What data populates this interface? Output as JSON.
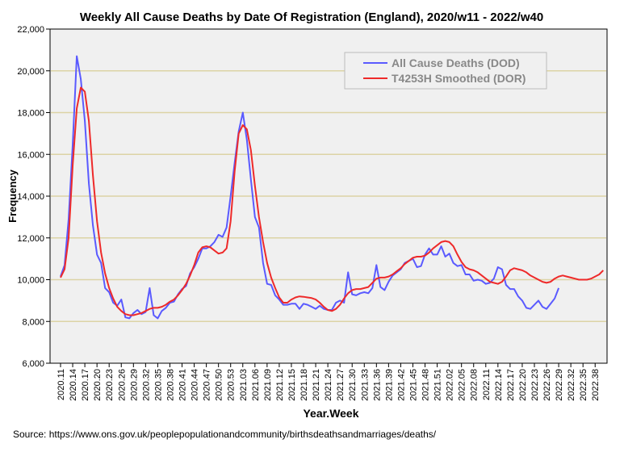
{
  "chart_data": {
    "type": "line",
    "title": "Weekly All Cause Deaths by Date Of Registration (England), 2020/w11 - 2022/w40",
    "xlabel": "Year.Week",
    "ylabel": "Frequency",
    "ylim": [
      6000,
      22000
    ],
    "yticks": [
      "6,000",
      "8,000",
      "10,000",
      "12,000",
      "14,000",
      "16,000",
      "18,000",
      "20,000",
      "22,000"
    ],
    "ytick_values": [
      6000,
      8000,
      10000,
      12000,
      14000,
      16000,
      18000,
      20000,
      22000
    ],
    "xtick_labels": [
      "2020.11",
      "2020.14",
      "2020.17",
      "2020.20",
      "2020.23",
      "2020.26",
      "2020.29",
      "2020.32",
      "2020.35",
      "2020.38",
      "2020.41",
      "2020.44",
      "2020.47",
      "2020.50",
      "2020.53",
      "2021.03",
      "2021.06",
      "2021.09",
      "2021.12",
      "2021.15",
      "2021.18",
      "2021.21",
      "2021.24",
      "2021.27",
      "2021.30",
      "2021.33",
      "2021.36",
      "2021.39",
      "2021.42",
      "2021.45",
      "2021.48",
      "2021.51",
      "2022.02",
      "2022.05",
      "2022.08",
      "2022.11",
      "2022.14",
      "2022.17",
      "2022.20",
      "2022.23",
      "2022.26",
      "2022.29",
      "2022.32",
      "2022.35",
      "2022.38"
    ],
    "xtick_every_weeks": 3,
    "grid": true,
    "legend_position": "top-right",
    "series": [
      {
        "name": "All Cause Deaths (DOD)",
        "color": "#5a5aff",
        "values": [
          10150,
          10700,
          12900,
          16500,
          20700,
          19600,
          17600,
          14600,
          12600,
          11200,
          10800,
          9600,
          9400,
          8900,
          8750,
          9050,
          8200,
          8150,
          8400,
          8550,
          8350,
          8450,
          9600,
          8300,
          8150,
          8500,
          8650,
          8900,
          8950,
          9300,
          9550,
          9700,
          10300,
          10600,
          11000,
          11500,
          11500,
          11600,
          11800,
          12150,
          12050,
          12500,
          14000,
          15600,
          17100,
          18000,
          16700,
          14800,
          13000,
          12500,
          10800,
          9800,
          9750,
          9250,
          9050,
          8800,
          8800,
          8850,
          8850,
          8600,
          8850,
          8800,
          8700,
          8600,
          8750,
          8600,
          8550,
          8550,
          8900,
          9000,
          8900,
          10350,
          9300,
          9250,
          9350,
          9400,
          9350,
          9600,
          10700,
          9650,
          9500,
          9900,
          10200,
          10350,
          10500,
          10800,
          10900,
          11000,
          10600,
          10650,
          11200,
          11500,
          11200,
          11200,
          11600,
          11100,
          11250,
          10800,
          10650,
          10700,
          10250,
          10250,
          9950,
          10000,
          9950,
          9800,
          9850,
          10050,
          10600,
          10500,
          9750,
          9550,
          9550,
          9200,
          9000,
          8650,
          8600,
          8800,
          9000,
          8700,
          8600,
          8850,
          9100,
          9600
        ]
      },
      {
        "name": "T4253H Smoothed (DOR)",
        "color": "#ee2a2a",
        "values": [
          10100,
          10500,
          12000,
          15500,
          18200,
          19200,
          19000,
          17600,
          15000,
          12800,
          11300,
          10300,
          9600,
          9100,
          8700,
          8500,
          8350,
          8300,
          8300,
          8350,
          8400,
          8500,
          8600,
          8650,
          8650,
          8700,
          8800,
          8950,
          9050,
          9250,
          9500,
          9800,
          10200,
          10700,
          11300,
          11550,
          11600,
          11550,
          11400,
          11250,
          11300,
          11500,
          12800,
          15200,
          17000,
          17400,
          17200,
          16200,
          14500,
          13000,
          11800,
          10800,
          10100,
          9600,
          9150,
          8900,
          8900,
          9050,
          9150,
          9200,
          9180,
          9150,
          9120,
          9050,
          8900,
          8700,
          8550,
          8500,
          8600,
          8800,
          9100,
          9350,
          9500,
          9550,
          9550,
          9600,
          9650,
          9850,
          10050,
          10100,
          10100,
          10150,
          10250,
          10400,
          10550,
          10750,
          10900,
          11050,
          11100,
          11100,
          11150,
          11300,
          11500,
          11650,
          11800,
          11850,
          11800,
          11600,
          11200,
          10850,
          10600,
          10500,
          10450,
          10350,
          10200,
          10050,
          9900,
          9850,
          9800,
          9900,
          10150,
          10450,
          10550,
          10500,
          10450,
          10350,
          10200,
          10100,
          10000,
          9900,
          9850,
          9900,
          10050,
          10150,
          10200,
          10150,
          10100,
          10050,
          10000,
          10000,
          10000,
          10050,
          10150,
          10250,
          10450
        ]
      }
    ]
  },
  "source": "Source: https://www.ons.gov.uk/peoplepopulationandcommunity/birthsdeathsandmarriages/deaths/"
}
